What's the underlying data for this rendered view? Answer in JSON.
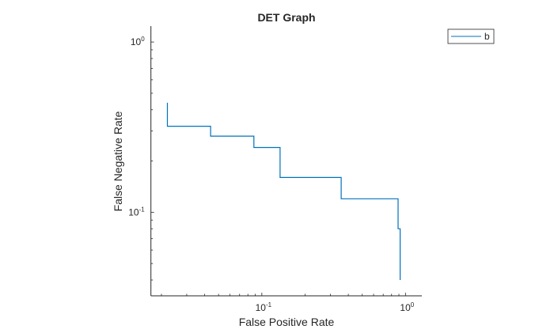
{
  "chart_data": {
    "type": "line",
    "title": "DET Graph",
    "xlabel": "False Positive Rate",
    "ylabel": "False Negative Rate",
    "xscale": "log",
    "yscale": "log",
    "xlim": [
      0.0169,
      1.3
    ],
    "ylim": [
      0.0323,
      1.24
    ],
    "xticks": [
      {
        "value": 0.1,
        "base": "10",
        "exp": "-1"
      },
      {
        "value": 1,
        "base": "10",
        "exp": "0"
      }
    ],
    "yticks": [
      {
        "value": 0.1,
        "base": "10",
        "exp": "-1"
      },
      {
        "value": 1,
        "base": "10",
        "exp": "0"
      }
    ],
    "grid": false,
    "legend_position": "outside-top-right",
    "series": [
      {
        "name": "b",
        "color": "#0072bd",
        "x": [
          0.022,
          0.022,
          0.044,
          0.044,
          0.088,
          0.088,
          0.134,
          0.134,
          0.357,
          0.357,
          0.889,
          0.889,
          0.918,
          0.918
        ],
        "y": [
          0.44,
          0.32,
          0.32,
          0.28,
          0.28,
          0.24,
          0.24,
          0.16,
          0.16,
          0.12,
          0.12,
          0.08,
          0.08,
          0.04
        ]
      }
    ]
  }
}
